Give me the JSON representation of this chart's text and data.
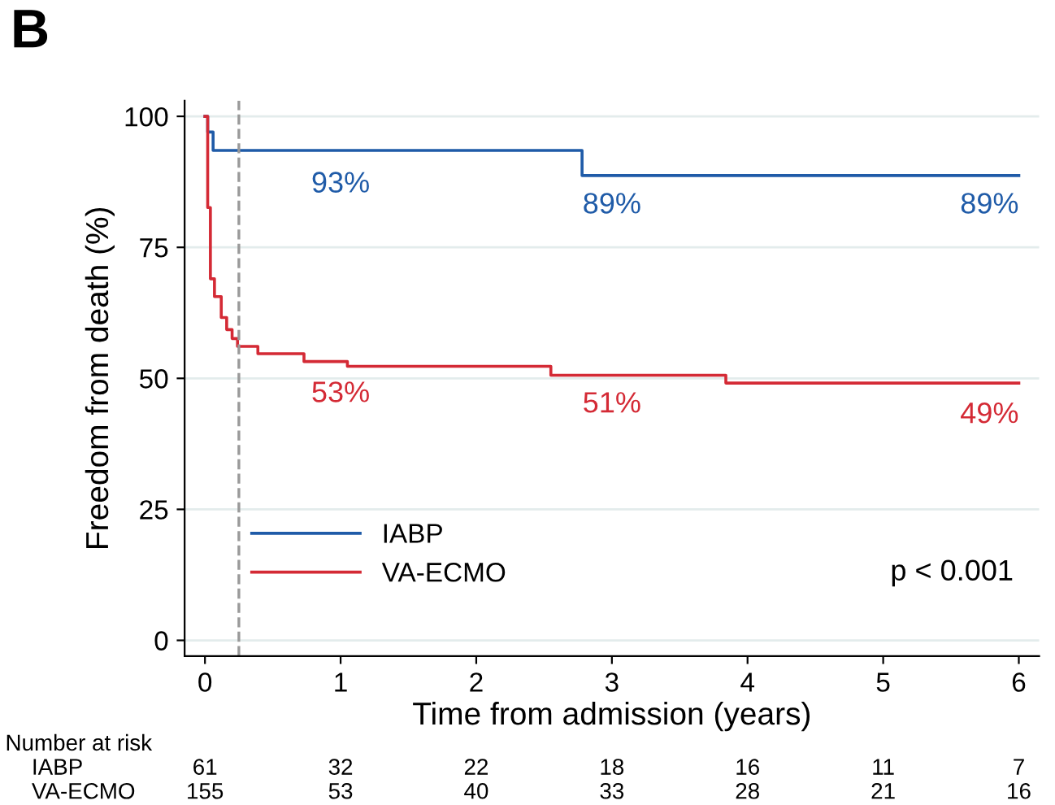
{
  "chart_data": {
    "type": "step",
    "title": "B",
    "xlabel": "Time from admission (years)",
    "ylabel": "Freedom from death (%)",
    "xlim": [
      -0.15,
      6.15
    ],
    "ylim": [
      -3,
      103
    ],
    "xticks": [
      0,
      1,
      2,
      3,
      4,
      5,
      6
    ],
    "yticks": [
      0,
      25,
      50,
      75,
      100
    ],
    "grid": "y",
    "legend": "bottom left",
    "series": [
      {
        "name": "IABP",
        "color": "#1f5ba8",
        "x": [
          0,
          0.02,
          0.06,
          2.78,
          6
        ],
        "values": [
          100,
          97,
          93.5,
          88.7,
          88.7
        ]
      },
      {
        "name": "VA-ECMO",
        "color": "#d42a35",
        "x": [
          0,
          0.02,
          0.04,
          0.07,
          0.12,
          0.16,
          0.2,
          0.24,
          0.39,
          0.73,
          1.05,
          2.55,
          3.84,
          6
        ],
        "values": [
          100,
          82.6,
          69,
          65.6,
          61.6,
          59.3,
          57.6,
          56.1,
          54.7,
          53.2,
          52.3,
          50.6,
          49.1,
          49.1
        ]
      }
    ],
    "ref_lines": [
      {
        "axis": "x",
        "value": 0.25,
        "color": "#999999",
        "line_style": "dashed"
      }
    ],
    "annotations": [
      {
        "text": "93%",
        "x": 1,
        "y": 93
      },
      {
        "text": "89%",
        "x": 3,
        "y": 89
      },
      {
        "text": "89%",
        "x": 6,
        "y": 89
      },
      {
        "text": "53%",
        "x": 1,
        "y": 53
      },
      {
        "text": "51%",
        "x": 3,
        "y": 51
      },
      {
        "text": "49%",
        "x": 6,
        "y": 49
      },
      "p < 0.001",
      "Number at risk",
      "IABP",
      "VA-ECMO",
      "61",
      "32",
      "22",
      "18",
      "16",
      "11",
      "7",
      "155",
      "53",
      "40",
      "33",
      "28",
      "21",
      "16"
    ]
  }
}
